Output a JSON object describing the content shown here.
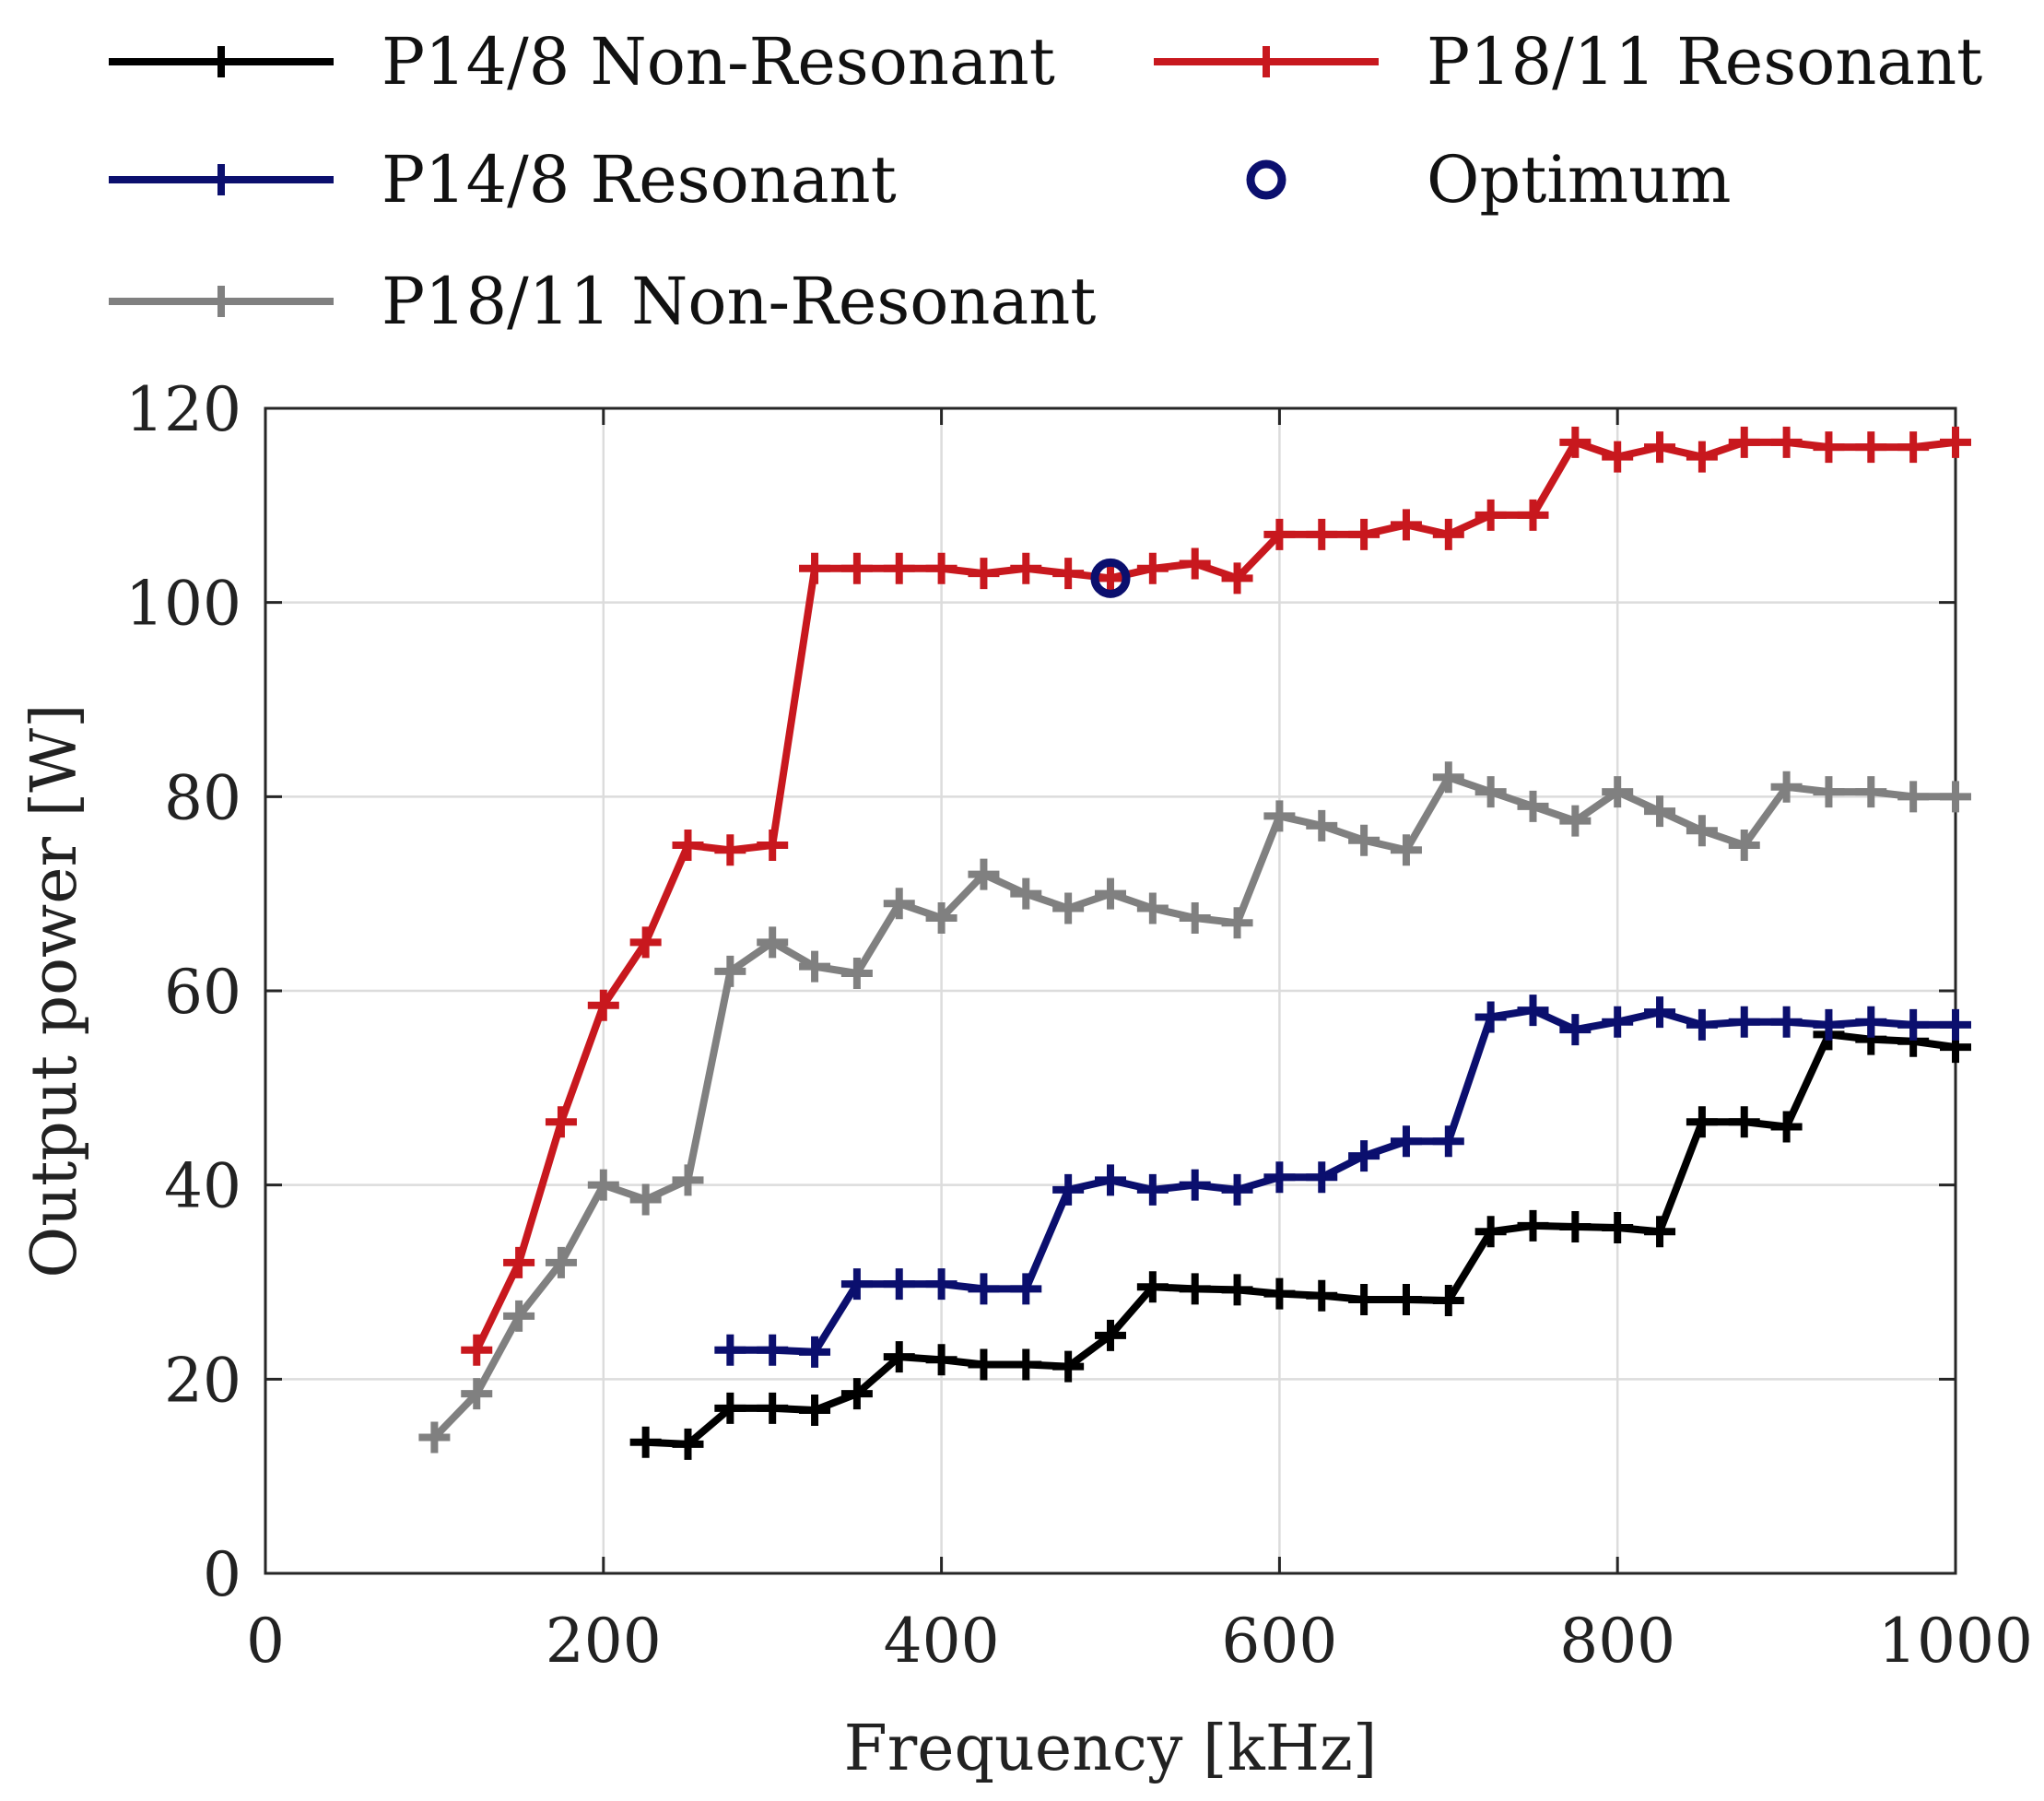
{
  "chart_data": {
    "type": "line",
    "title": "",
    "xlabel": "Frequency [kHz]",
    "ylabel": "Output power [W]",
    "xlim": [
      0,
      1000
    ],
    "ylim": [
      0,
      120
    ],
    "xticks": [
      0,
      200,
      400,
      600,
      800,
      1000
    ],
    "yticks": [
      0,
      20,
      40,
      60,
      80,
      100,
      120
    ],
    "xtick_labels": [
      "0",
      "200",
      "400",
      "600",
      "800",
      "1000"
    ],
    "ytick_labels": [
      "0",
      "20",
      "40",
      "60",
      "80",
      "100",
      "120"
    ],
    "grid": true,
    "legend_position": "top",
    "series": [
      {
        "name": "P14/8 Non-Resonant",
        "color": "#000000",
        "marker": "plus",
        "x": [
          225,
          250,
          275,
          300,
          325,
          350,
          375,
          400,
          425,
          450,
          475,
          500,
          525,
          550,
          575,
          600,
          625,
          650,
          675,
          700,
          725,
          750,
          775,
          800,
          825,
          850,
          875,
          900,
          925,
          950,
          975,
          1000
        ],
        "y": [
          13.5,
          13.3,
          17.0,
          17.0,
          16.8,
          18.5,
          22.3,
          22.0,
          21.5,
          21.5,
          21.3,
          24.5,
          29.5,
          29.3,
          29.2,
          28.8,
          28.6,
          28.2,
          28.2,
          28.1,
          35.2,
          35.8,
          35.7,
          35.6,
          35.2,
          46.5,
          46.5,
          46.0,
          55.5,
          55.0,
          54.8,
          54.2
        ]
      },
      {
        "name": "P14/8 Resonant",
        "color": "#0b0f6e",
        "marker": "plus",
        "x": [
          275,
          300,
          325,
          350,
          375,
          400,
          425,
          450,
          475,
          500,
          525,
          550,
          575,
          600,
          625,
          650,
          675,
          700,
          725,
          750,
          775,
          800,
          825,
          850,
          875,
          900,
          925,
          950,
          975,
          1000
        ],
        "y": [
          23.0,
          23.0,
          22.8,
          29.8,
          29.8,
          29.8,
          29.3,
          29.3,
          39.5,
          40.5,
          39.5,
          40.0,
          39.5,
          40.8,
          40.8,
          43.0,
          44.5,
          44.5,
          57.3,
          58.0,
          56.0,
          56.8,
          57.8,
          56.5,
          56.8,
          56.8,
          56.5,
          56.8,
          56.5,
          56.5
        ]
      },
      {
        "name": "P18/11 Non-Resonant",
        "color": "#808080",
        "marker": "plus",
        "x": [
          100,
          125,
          150,
          175,
          200,
          225,
          250,
          275,
          300,
          325,
          350,
          375,
          400,
          425,
          450,
          475,
          500,
          525,
          550,
          575,
          600,
          625,
          650,
          675,
          700,
          725,
          750,
          775,
          800,
          825,
          850,
          875,
          900,
          925,
          950,
          975,
          1000
        ],
        "y": [
          14.0,
          18.5,
          26.5,
          32.0,
          40.0,
          38.5,
          40.5,
          62.0,
          65.0,
          62.5,
          61.8,
          69.0,
          67.5,
          72.0,
          70.0,
          68.5,
          70.0,
          68.5,
          67.5,
          67.0,
          78.0,
          77.0,
          75.5,
          74.5,
          82.0,
          80.5,
          79.0,
          77.5,
          80.5,
          78.5,
          76.5,
          75.0,
          81.0,
          80.5,
          80.5,
          80.0,
          80.0
        ]
      },
      {
        "name": "P18/11 Resonant",
        "color": "#c8181e",
        "marker": "plus",
        "x": [
          125,
          150,
          175,
          200,
          225,
          250,
          275,
          300,
          325,
          350,
          375,
          400,
          425,
          450,
          475,
          500,
          525,
          550,
          575,
          600,
          625,
          650,
          675,
          700,
          725,
          750,
          775,
          800,
          825,
          850,
          875,
          900,
          925,
          950,
          975,
          1000
        ],
        "y": [
          23.0,
          32.0,
          46.5,
          58.5,
          65.0,
          75.0,
          74.5,
          75.0,
          103.5,
          103.5,
          103.5,
          103.5,
          103.0,
          103.5,
          103.0,
          102.5,
          103.5,
          104.0,
          102.5,
          107.0,
          107.0,
          107.0,
          108.0,
          107.0,
          109.0,
          109.0,
          116.5,
          115.0,
          116.0,
          115.0,
          116.5,
          116.5,
          116.0,
          116.0,
          116.0,
          116.5
        ]
      }
    ],
    "optimum": {
      "name": "Optimum",
      "color": "#0b0f6e",
      "marker": "circle",
      "x": 500,
      "y": 102.5
    }
  }
}
